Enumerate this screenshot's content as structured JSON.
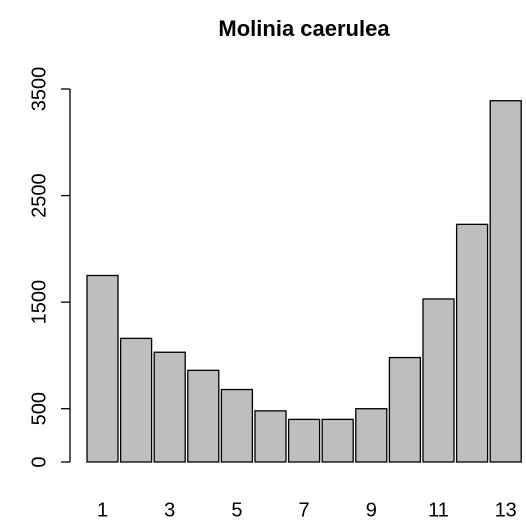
{
  "chart_data": {
    "type": "bar",
    "title": "Molinia caerulea",
    "categories": [
      1,
      null,
      3,
      null,
      5,
      null,
      7,
      null,
      9,
      null,
      11,
      null,
      13
    ],
    "values": [
      1750,
      1160,
      1030,
      860,
      680,
      480,
      400,
      400,
      500,
      980,
      1530,
      2230,
      3390
    ],
    "color": "#bebebe",
    "ylim": [
      0,
      3500
    ],
    "yticks": [
      0,
      500,
      1500,
      2500,
      3500
    ],
    "grid": false
  }
}
